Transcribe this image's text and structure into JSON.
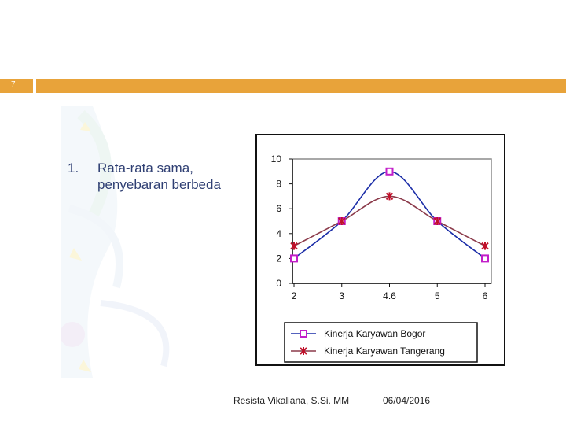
{
  "slide": {
    "number": "7"
  },
  "content": {
    "item_number": "1.",
    "item_line1": "Rata-rata sama,",
    "item_line2": "penyebaran berbeda"
  },
  "colors": {
    "accent": "#e8a33a",
    "text": "#2f3f73",
    "series_bogor": "#1c2ea8",
    "series_bogor_marker": "#c21ec9",
    "series_tangerang": "#8b3a4a",
    "series_tangerang_marker": "#c0102a"
  },
  "chart_data": {
    "type": "line",
    "categories": [
      "2",
      "3",
      "4.6",
      "5",
      "6"
    ],
    "yticks": [
      "10",
      "8",
      "6",
      "4",
      "2",
      "0"
    ],
    "ylim": [
      0,
      10
    ],
    "series": [
      {
        "name": "Kinerja Karyawan Bogor",
        "values": [
          2,
          5,
          9,
          5,
          2
        ],
        "marker": "square"
      },
      {
        "name": "Kinerja Karyawan Tangerang",
        "values": [
          3,
          5,
          7,
          5,
          3
        ],
        "marker": "star"
      }
    ],
    "grid": false,
    "legend": "bottom"
  },
  "footer": {
    "author": "Resista Vikaliana, S.Si. MM",
    "date": "06/04/2016"
  }
}
